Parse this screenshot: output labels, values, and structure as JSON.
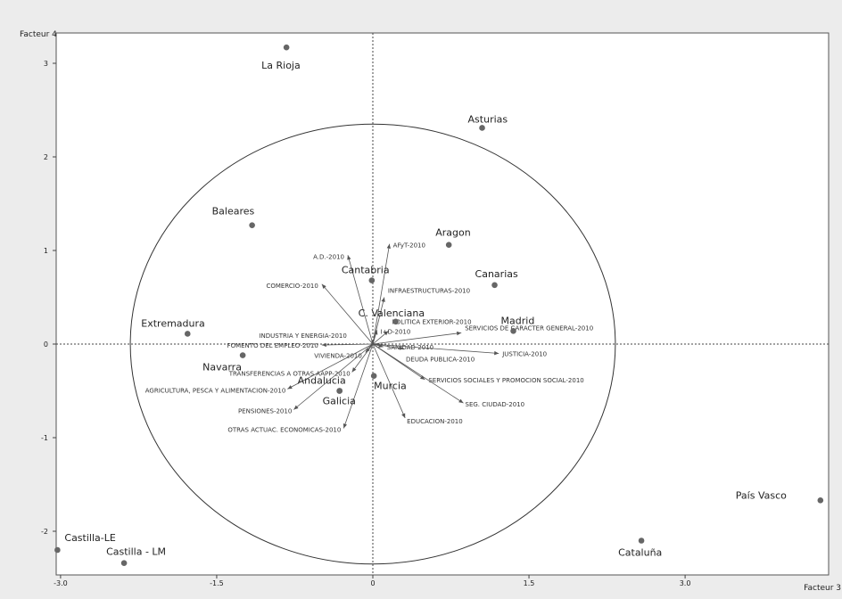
{
  "chart_data": {
    "type": "scatter",
    "title": "",
    "xlabel": "Facteur 3",
    "ylabel": "Facteur 4",
    "xlim": [
      -3.05,
      4.3
    ],
    "ylim": [
      -2.35,
      3.25
    ],
    "xticks": [
      -3.0,
      -1.5,
      0,
      1.5,
      3.0
    ],
    "xtick_labels": [
      "-3.0",
      "-1.5",
      "0",
      "1.5",
      "3.0"
    ],
    "yticks": [
      -2,
      -1,
      0,
      1,
      2,
      3
    ],
    "ytick_labels": [
      "-2",
      "-1",
      "0",
      "1",
      "2",
      "3"
    ],
    "grid": false,
    "correlation_circle": {
      "center": [
        0,
        0
      ],
      "rx": 2.33,
      "ry": 2.35
    },
    "points": [
      {
        "name": "La Rioja",
        "x": -0.83,
        "y": 3.17
      },
      {
        "name": "Asturias",
        "x": 1.05,
        "y": 2.31
      },
      {
        "name": "Baleares",
        "x": -1.16,
        "y": 1.27
      },
      {
        "name": "Aragon",
        "x": 0.73,
        "y": 1.06
      },
      {
        "name": "Cantabria",
        "x": -0.01,
        "y": 0.68
      },
      {
        "name": "Canarias",
        "x": 1.17,
        "y": 0.63
      },
      {
        "name": "C. Valenciana",
        "x": 0.22,
        "y": 0.24
      },
      {
        "name": "Madrid",
        "x": 1.35,
        "y": 0.14
      },
      {
        "name": "Extremadura",
        "x": -1.78,
        "y": 0.11
      },
      {
        "name": "Navarra",
        "x": -1.25,
        "y": -0.12
      },
      {
        "name": "Andalucia",
        "x": -0.32,
        "y": -0.5
      },
      {
        "name": "Murcia",
        "x": 0.01,
        "y": -0.34
      },
      {
        "name": "Galicia",
        "x": -0.32,
        "y": -0.5
      },
      {
        "name": "País Vasco",
        "x": 4.3,
        "y": -1.67
      },
      {
        "name": "Cataluña",
        "x": 2.58,
        "y": -2.1
      },
      {
        "name": "Castilla-LE",
        "x": -3.03,
        "y": -2.2
      },
      {
        "name": "Castilla - LM",
        "x": -2.39,
        "y": -2.34
      }
    ],
    "vectors": [
      {
        "name": "AFyT-2010",
        "x": 0.16,
        "y": 1.07
      },
      {
        "name": "A.D.-2010",
        "x": -0.24,
        "y": 0.95
      },
      {
        "name": "COMERCIO-2010",
        "x": -0.49,
        "y": 0.64
      },
      {
        "name": "INFRAESTRUCTURAS-2010",
        "x": 0.11,
        "y": 0.5
      },
      {
        "name": "I+D-2010",
        "x": 0.04,
        "y": 0.15
      },
      {
        "name": "POLITICA EXTERIOR-2010",
        "x": 0.15,
        "y": 0.14
      },
      {
        "name": "SERVICIOS DE CARACTER GENERAL-2010",
        "x": 0.85,
        "y": 0.12
      },
      {
        "name": "INDUSTRIA Y ENERGIA-2010",
        "x": -0.01,
        "y": 0.04
      },
      {
        "name": "FOMENTO DEL EMPLEO-2010",
        "x": -0.49,
        "y": -0.01
      },
      {
        "name": "SANIDAD-2010",
        "x": 0.1,
        "y": -0.03
      },
      {
        "name": "VIVIENDA-2010",
        "x": -0.07,
        "y": -0.09
      },
      {
        "name": "JUSTICIA-2010",
        "x": 1.21,
        "y": -0.1
      },
      {
        "name": "DEUDA PUBLICA-2010",
        "x": 0.3,
        "y": -0.05
      },
      {
        "name": "TRANSFERENCIAS A OTRAS AAPP-2010",
        "x": -0.2,
        "y": -0.3
      },
      {
        "name": "SERVICIOS SOCIALES Y PROMOCION SOCIAL-2010",
        "x": 0.5,
        "y": -0.38
      },
      {
        "name": "AGRICULTURA, PESCA Y ALIMENTACION-2010",
        "x": -0.82,
        "y": -0.48
      },
      {
        "name": "SEG. CIUDAD-2010",
        "x": 0.87,
        "y": -0.63
      },
      {
        "name": "PENSIONES-2010",
        "x": -0.76,
        "y": -0.7
      },
      {
        "name": "EDUCACION-2010",
        "x": 0.31,
        "y": -0.79
      },
      {
        "name": "OTRAS ACTUAC. ECONOMICAS-2010",
        "x": -0.28,
        "y": -0.9
      }
    ]
  }
}
